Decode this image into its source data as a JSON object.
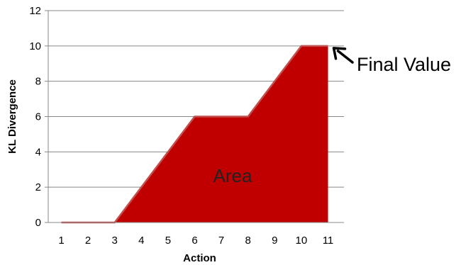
{
  "chart_data": {
    "type": "area",
    "xlabel": "Action",
    "ylabel": "KL Divergence",
    "x": [
      1,
      2,
      3,
      4,
      5,
      6,
      7,
      8,
      9,
      10,
      11
    ],
    "series": [
      {
        "values": [
          0,
          0,
          0,
          2,
          4,
          6,
          6,
          6,
          8,
          10,
          10
        ]
      }
    ],
    "xticks": [
      "1",
      "2",
      "3",
      "4",
      "5",
      "6",
      "7",
      "8",
      "9",
      "10",
      "11"
    ],
    "yticks": [
      "0",
      "2",
      "4",
      "6",
      "8",
      "10",
      "12"
    ],
    "ylim": [
      0,
      12
    ],
    "grid": true,
    "legend": "none",
    "annotations": {
      "area_label": "Area",
      "final_value_label": "Final Value"
    },
    "colors": {
      "fill": "#c00000",
      "line": "#c0504d",
      "grid": "#888888",
      "arrow": "#000000"
    }
  }
}
